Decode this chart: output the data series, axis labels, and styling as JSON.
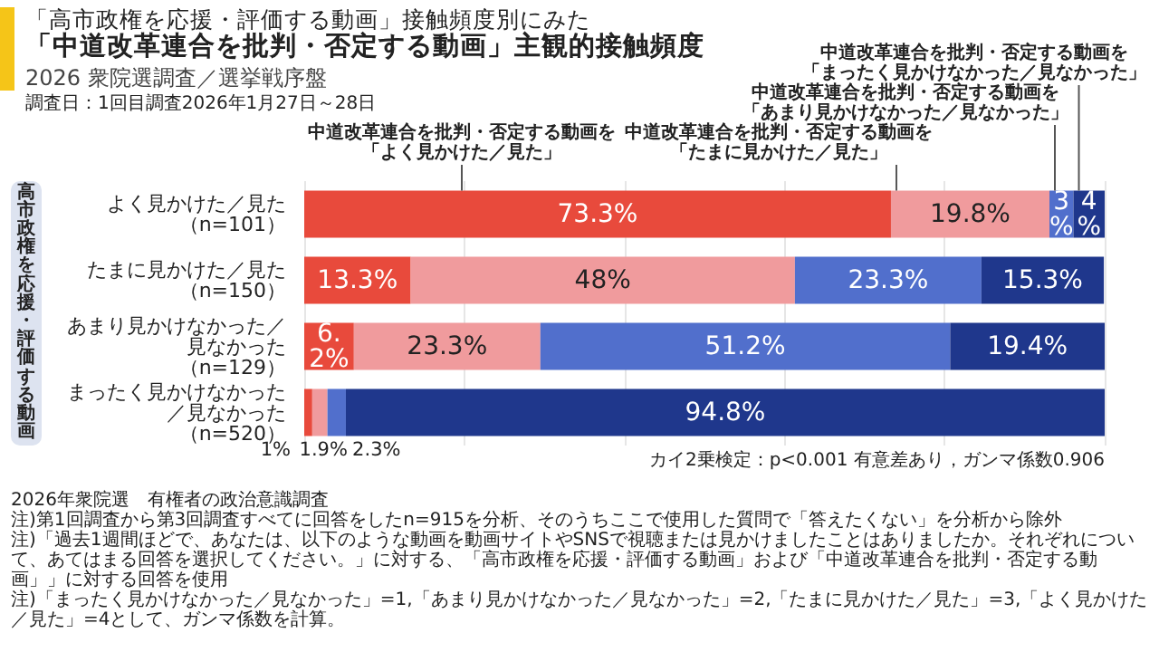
{
  "chart_data": {
    "type": "bar",
    "orientation": "horizontal",
    "stacked": true,
    "title": "「中道改革連合を批判・否定する動画」主観的接触頻度",
    "subtitle": "「高市政権を応援・評価する動画」接触頻度別にみた",
    "ylabel": "高市政権を応援・評価する動画",
    "categories": [
      "よく見かけた／見た（n=101）",
      "たまに見かけた／見た（n=150）",
      "あまり見かけなかった／見なかった（n=129）",
      "まったく見かけなかった／見なかった（n=520）"
    ],
    "series": [
      {
        "name": "中道改革連合を批判・否定する動画を「よく見かけた／見た」",
        "color": "#e84a3c",
        "values": [
          73.3,
          13.3,
          6.2,
          1
        ],
        "value_labels": [
          "73.3%",
          "13.3%",
          "6.2%",
          "1%"
        ]
      },
      {
        "name": "中道改革連合を批判・否定する動画を「たまに見かけた／見た」",
        "color": "#f09b9d",
        "values": [
          19.8,
          48,
          23.3,
          1.9
        ],
        "value_labels": [
          "19.8%",
          "48%",
          "23.3%",
          "1.9%"
        ]
      },
      {
        "name": "中道改革連合を批判・否定する動画を「あまり見かけなかった／見なかった」",
        "color": "#516fcc",
        "values": [
          3,
          23.3,
          51.2,
          2.3
        ],
        "value_labels": [
          "3%",
          "23.3%",
          "51.2%",
          "2.3%"
        ]
      },
      {
        "name": "中道改革連合を批判・否定する動画を「まったく見かけなかった／見なかった」",
        "color": "#1f378c",
        "values": [
          4,
          15.3,
          19.4,
          94.8
        ],
        "value_labels": [
          "4%",
          "15.3%",
          "19.4%",
          "94.8%"
        ]
      }
    ],
    "xlim": [
      0,
      100
    ],
    "xticks": [
      {
        "value": 0,
        "label": null
      },
      {
        "value": 20,
        "label": null
      },
      {
        "value": 40,
        "label": null
      },
      {
        "value": 60,
        "label": null
      },
      {
        "value": 80,
        "label": null
      },
      {
        "value": 100,
        "label": null
      }
    ],
    "tick_labels": "y",
    "grid": "x",
    "legend": false,
    "annotations": [
      "2026 衆院選調査／選挙戦序盤",
      "調査日：1回目調査2026年1月27日～28日",
      "カイ2乗検定：p<0.001 有意差あり，ガンマ係数0.906",
      "2026年衆院選　有権者の政治意識調査",
      "注)第1回調査から第3回調査すべてに回答をしたn=915を分析、そのうちここで使用した質問で「答えたくない」を分析から除外",
      "注)「過去1週間ほどで、あなたは、以下のような動画を動画サイトやSNSで視聴または見かけましたことはありましたか。それぞれについて、あてはまる回答を選択してください。」に対する、「高市政権を応援・評価する動画」および「中道改革連合を批判・否定する動画」」に対する回答を使用",
      "注)「まったく見かけなかった／見なかった」=1,「あまり見かけなかった／見なかった」=2,「たまに見かけた／見た」=3,「よく見かけた／見た」=4として、ガンマ係数を計算。"
    ]
  }
}
